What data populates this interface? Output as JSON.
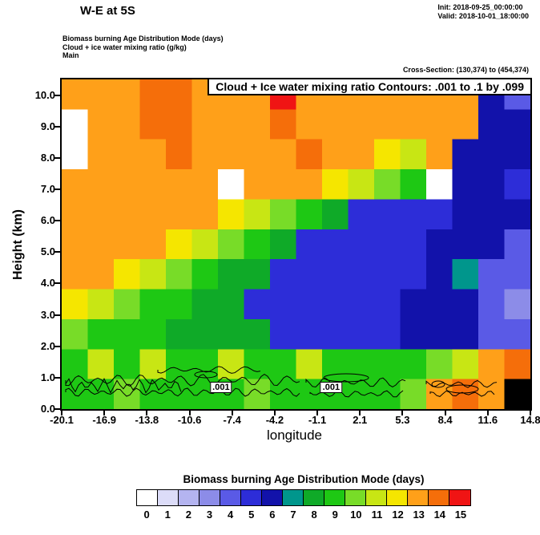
{
  "header": {
    "title": "W-E at 5S",
    "init": "Init: 2018-09-25_00:00:00",
    "valid": "Valid: 2018-10-01_18:00:00",
    "field1": "Biomass burning Age Distribution Mode  (days)",
    "field2": "Cloud + ice water mixing ratio  (g/kg)",
    "field3": "Main",
    "cross_section": "Cross-Section: (130,374) to (454,374)"
  },
  "plot": {
    "contour_info": "Cloud + Ice water mixing ratio Contours: .001 to .1 by .099",
    "ylabel": "Height (km)",
    "xlabel": "longitude",
    "y_ticks": [
      "0.0",
      "1.0",
      "2.0",
      "3.0",
      "4.0",
      "5.0",
      "6.0",
      "7.0",
      "8.0",
      "9.0",
      "10.0"
    ],
    "x_ticks": [
      "-20.1",
      "-16.9",
      "-13.8",
      "-10.6",
      "-7.4",
      "-4.2",
      "-1.1",
      "2.1",
      "5.3",
      "8.4",
      "11.6",
      "14.8"
    ],
    "contour_labels": [
      ".001",
      ".001"
    ]
  },
  "colorbar": {
    "title": "Biomass burning Age Distribution Mode  (days)",
    "tick_labels": [
      "0",
      "1",
      "2",
      "3",
      "4",
      "5",
      "6",
      "7",
      "8",
      "9",
      "10",
      "11",
      "12",
      "13",
      "14",
      "15"
    ],
    "colors": [
      "#ffffff",
      "#dcdcf8",
      "#b4b4f0",
      "#8c8ce8",
      "#5a5ae6",
      "#2d2dd8",
      "#1212aa",
      "#00968c",
      "#0faa28",
      "#1ec814",
      "#78dc28",
      "#c8e614",
      "#f5e600",
      "#ffa019",
      "#f56e0a",
      "#f01414"
    ]
  },
  "chart_data": {
    "type": "heatmap",
    "title": "Biomass burning Age Distribution Mode (days), W-E cross-section at 5S",
    "xlabel": "longitude",
    "ylabel": "Height (km)",
    "x_range": [
      -20.1,
      14.8
    ],
    "y_range": [
      0,
      10.5
    ],
    "x_tick_values": [
      -20.1,
      -16.9,
      -13.8,
      -10.6,
      -7.4,
      -4.2,
      -1.1,
      2.1,
      5.3,
      8.4,
      11.6,
      14.8
    ],
    "y_tick_values": [
      0,
      1,
      2,
      3,
      4,
      5,
      6,
      7,
      8,
      9,
      10
    ],
    "value_name": "Biomass burning age",
    "value_unit": "days",
    "value_levels": [
      0,
      1,
      2,
      3,
      4,
      5,
      6,
      7,
      8,
      9,
      10,
      11,
      12,
      13,
      14,
      15
    ],
    "terrain_value": 16,
    "terrain_color": "#000000",
    "grid_rows_top_to_bottom": true,
    "grid_note": "Age (days) sampled on 18 longitude columns (-20.1 to 14.8) x 11 height rows (10.5 km down to 0 km); 0=white spots, 16=terrain",
    "grid": [
      [
        13,
        13,
        13,
        14,
        14,
        13,
        13,
        13,
        15,
        13,
        13,
        13,
        13,
        13,
        13,
        13,
        6,
        4
      ],
      [
        0,
        13,
        13,
        14,
        14,
        13,
        13,
        13,
        14,
        13,
        13,
        13,
        13,
        13,
        13,
        13,
        6,
        6
      ],
      [
        0,
        13,
        13,
        13,
        14,
        13,
        13,
        13,
        13,
        14,
        13,
        13,
        12,
        11,
        13,
        6,
        6,
        6
      ],
      [
        13,
        13,
        13,
        13,
        13,
        13,
        0,
        13,
        13,
        13,
        12,
        11,
        10,
        9,
        0,
        6,
        6,
        5
      ],
      [
        13,
        13,
        13,
        13,
        13,
        13,
        12,
        11,
        10,
        9,
        8,
        5,
        5,
        5,
        5,
        6,
        6,
        6
      ],
      [
        13,
        13,
        13,
        13,
        12,
        11,
        10,
        9,
        8,
        5,
        5,
        5,
        5,
        5,
        6,
        6,
        6,
        4
      ],
      [
        13,
        13,
        12,
        11,
        10,
        9,
        8,
        8,
        5,
        5,
        5,
        5,
        5,
        5,
        6,
        7,
        4,
        4
      ],
      [
        12,
        11,
        10,
        9,
        9,
        8,
        8,
        5,
        5,
        5,
        5,
        5,
        5,
        6,
        6,
        6,
        4,
        3
      ],
      [
        10,
        9,
        9,
        9,
        8,
        8,
        8,
        8,
        5,
        5,
        5,
        5,
        5,
        6,
        6,
        6,
        4,
        4
      ],
      [
        9,
        11,
        9,
        11,
        9,
        9,
        11,
        9,
        9,
        11,
        9,
        9,
        9,
        9,
        10,
        11,
        13,
        14
      ],
      [
        9,
        9,
        10,
        9,
        9,
        9,
        9,
        10,
        9,
        9,
        9,
        9,
        9,
        10,
        13,
        14,
        13,
        16
      ]
    ],
    "contour_overlay": {
      "variable": "Cloud + Ice water mixing ratio",
      "unit": "g/kg",
      "levels": [
        0.001,
        0.1
      ],
      "interval": 0.099,
      "labeled_level": 0.001,
      "location": "thin black contour lines between roughly 0.4 and 1.5 km altitude"
    }
  }
}
